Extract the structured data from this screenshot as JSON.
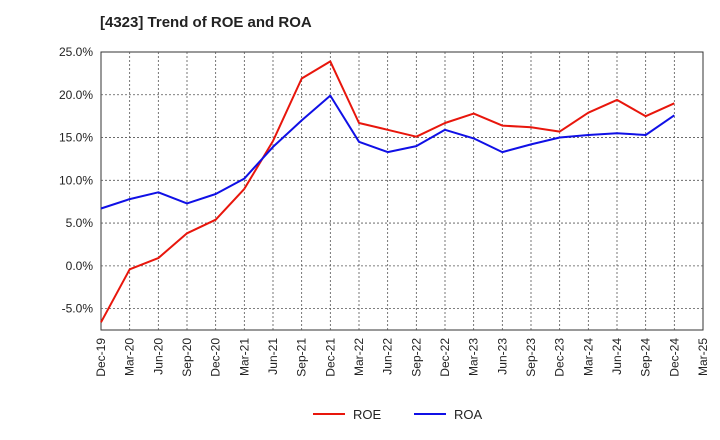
{
  "chart_data": {
    "type": "line",
    "title": "[4323]  Trend of ROE and ROA",
    "x": [
      "Dec-19",
      "Mar-20",
      "Jun-20",
      "Sep-20",
      "Dec-20",
      "Mar-21",
      "Jun-21",
      "Sep-21",
      "Dec-21",
      "Mar-22",
      "Jun-22",
      "Sep-22",
      "Dec-22",
      "Mar-23",
      "Jun-23",
      "Sep-23",
      "Dec-23",
      "Mar-24",
      "Jun-24",
      "Sep-24",
      "Dec-24"
    ],
    "x_ticks": [
      "Dec-19",
      "Mar-20",
      "Jun-20",
      "Sep-20",
      "Dec-20",
      "Mar-21",
      "Jun-21",
      "Sep-21",
      "Dec-21",
      "Mar-22",
      "Jun-22",
      "Sep-22",
      "Dec-22",
      "Mar-23",
      "Jun-23",
      "Sep-23",
      "Dec-23",
      "Mar-24",
      "Jun-24",
      "Sep-24",
      "Dec-24",
      "Mar-25"
    ],
    "y_ticks": [
      "25.0%",
      "20.0%",
      "15.0%",
      "10.0%",
      "5.0%",
      "0.0%",
      "-5.0%"
    ],
    "ylim": [
      -7.5,
      25
    ],
    "grid": true,
    "legend_position": "bottom",
    "series": [
      {
        "name": "ROE",
        "color": "#e8160c",
        "values": [
          -6.6,
          -0.4,
          0.9,
          3.8,
          5.4,
          9.0,
          14.6,
          21.9,
          23.9,
          16.7,
          15.9,
          15.1,
          16.7,
          17.8,
          16.4,
          16.2,
          15.7,
          17.9,
          19.4,
          17.5,
          19.0
        ]
      },
      {
        "name": "ROA",
        "color": "#1010e6",
        "values": [
          6.7,
          7.8,
          8.6,
          7.3,
          8.4,
          10.2,
          13.9,
          17.0,
          19.9,
          14.5,
          13.3,
          14.0,
          15.9,
          14.9,
          13.3,
          14.2,
          15.0,
          15.3,
          15.5,
          15.3,
          17.6
        ]
      }
    ]
  }
}
